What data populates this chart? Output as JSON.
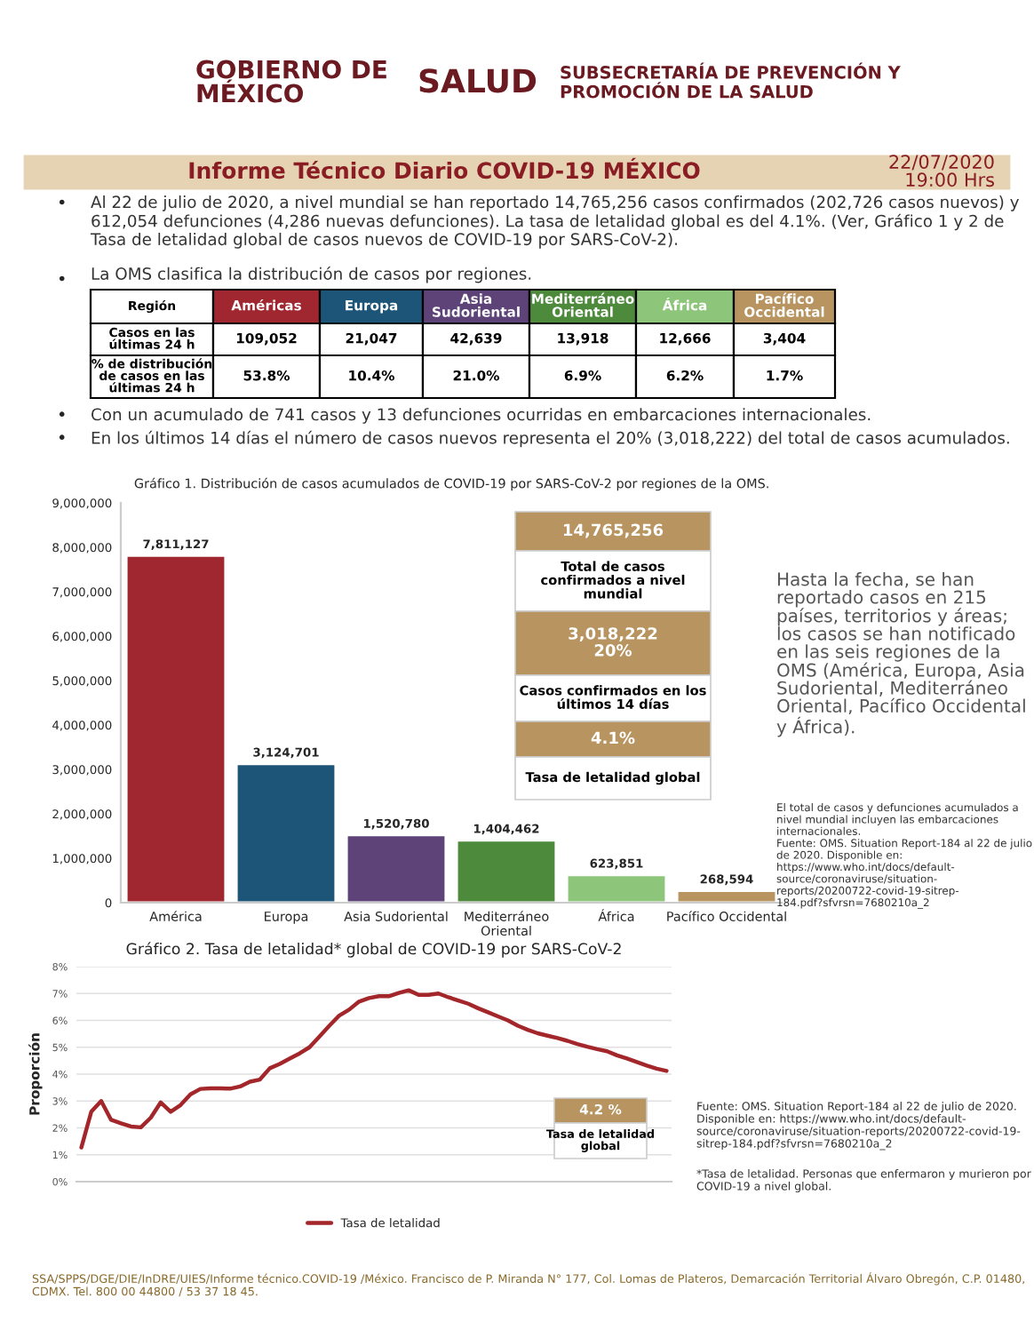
{
  "chart_data": [
    {
      "type": "other",
      "title": "Informe Técnico Diario COVID-19 MÉXICO",
      "subtitle": "22/07/2020\n19:00 Hrs",
      "annotations": [
        "GOBIERNO DE\nMÉXICO",
        "SALUD",
        "SUBSECRETARÍA DE PREVENCIÓN Y\nPROMOCIÓN DE LA SALUD",
        "Al 22 de julio de 2020, a nivel mundial se han reportado 14,765,256 casos confirmados (202,726 casos nuevos) y 612,054 defunciones (4,286 nuevas defunciones). La tasa de letalidad global es del 4.1%. (Ver, Gráfico 1 y 2 de Tasa de letalidad global de casos nuevos de COVID-19 por SARS-CoV-2).",
        "La OMS clasifica la distribución de casos por regiones.",
        "Región",
        "Américas",
        "Europa",
        "Asia\nSudoriental",
        "Mediterráneo\nOriental",
        "África",
        "Pacífico\nOccidental",
        "Casos en las\núltimas 24 h",
        "109,052",
        "21,047",
        "42,639",
        "13,918",
        "12,666",
        "3,404",
        "% de distribución\nde casos en las\núltimas 24 h",
        "53.8%",
        "10.4%",
        "21.0%",
        "6.9%",
        "6.2%",
        "1.7%",
        "Con un acumulado de 741 casos y 13 defunciones ocurridas en embarcaciones internacionales.",
        "En los últimos 14 días el número de casos nuevos representa el 20% (3,018,222) del total de casos acumulados.",
        "SSA/SPPS/DGE/DIE/InDRE/UIES/Informe técnico.COVID-19 /México. Francisco de P. Miranda N° 177, Col. Lomas de Plateros, Demarcación Territorial Álvaro Obregón, C.P. 01480, CDMX. Tel. 800 00 44800 / 53 37 18 45.",
        "•",
        "•",
        "•",
        "•"
      ]
    },
    {
      "type": "bar",
      "title": "Gráfico 1. Distribución de casos acumulados de COVID-19 por SARS-CoV-2 por regiones de la OMS.",
      "categories": [
        "América",
        "Europa",
        "Asia Sudoriental",
        "Mediterráneo\nOriental",
        "África",
        "Pacífico Occidental"
      ],
      "values": [
        7811127,
        3124701,
        1520780,
        1404462,
        623851,
        268594
      ],
      "colors": [
        "#a0272f",
        "#1d5579",
        "#5e4379",
        "#4d8a3c",
        "#8dc57a",
        "#b89460"
      ],
      "value_labels": [
        "7,811,127",
        "3,124,701",
        "1,520,780",
        "1,404,462",
        "623,851",
        "268,594"
      ],
      "ylim": [
        0,
        9000000
      ],
      "yticks": [
        {
          "value": 0,
          "label": "0"
        },
        {
          "value": 1000000,
          "label": "1,000,000"
        },
        {
          "value": 2000000,
          "label": "2,000,000"
        },
        {
          "value": 3000000,
          "label": "3,000,000"
        },
        {
          "value": 4000000,
          "label": "4,000,000"
        },
        {
          "value": 5000000,
          "label": "5,000,000"
        },
        {
          "value": 6000000,
          "label": "6,000,000"
        },
        {
          "value": 7000000,
          "label": "7,000,000"
        },
        {
          "value": 8000000,
          "label": "8,000,000"
        },
        {
          "value": 9000000,
          "label": "9,000,000"
        }
      ],
      "annotations": [
        "14,765,256",
        "Total de casos\nconfirmados a nivel\nmundial",
        "3,018,222\n20%",
        "Casos confirmados en los\núltimos 14 días",
        "4.1%",
        "Tasa de letalidad global",
        "Hasta la fecha, se han reportado casos en 215 países, territorios y áreas; los casos se han notificado en las seis regiones de la OMS (América, Europa, Asia Sudoriental, Mediterráneo Oriental, Pacífico Occidental y África).",
        "El total de casos y defunciones acumulados a nivel mundial incluyen las embarcaciones internacionales.\nFuente: OMS. Situation Report-184 al 22 de julio de 2020. Disponible en:\nhttps://www.who.int/docs/default-\nsource/coronaviruse/situation-\nreports/20200722-covid-19-sitrep-\n184.pdf?sfvrsn=7680210a_2"
      ]
    },
    {
      "type": "line",
      "title": "Gráfico 2. Tasa de letalidad* global de COVID-19 por SARS-CoV-2",
      "ylabel": "Proporción",
      "categories": [
        null,
        null,
        null,
        null,
        null,
        null,
        null,
        null,
        null,
        null,
        null,
        null,
        null,
        null,
        null,
        null,
        null,
        null,
        null,
        null,
        null,
        null,
        null,
        null,
        null,
        null,
        null,
        null,
        null,
        null,
        null,
        null,
        null,
        null,
        null,
        null,
        null,
        null,
        null,
        null,
        null,
        null,
        null,
        null,
        null,
        null,
        null,
        null,
        null,
        null,
        null,
        null,
        null,
        null,
        null,
        null,
        null,
        null,
        null,
        null
      ],
      "series": [
        {
          "name": "Tasa de letalidad",
          "color": "#a3262a",
          "values": [
            1.27,
            2.6,
            3.0,
            2.3,
            2.17,
            2.05,
            2.02,
            2.38,
            2.95,
            2.6,
            2.85,
            3.25,
            3.45,
            3.47,
            3.47,
            3.46,
            3.54,
            3.72,
            3.8,
            4.22,
            4.38,
            4.58,
            4.77,
            5.0,
            5.4,
            5.8,
            6.18,
            6.4,
            6.7,
            6.83,
            6.9,
            6.9,
            7.02,
            7.12,
            6.95,
            6.95,
            7.0,
            6.86,
            6.74,
            6.62,
            6.45,
            6.3,
            6.15,
            6.0,
            5.8,
            5.65,
            5.52,
            5.43,
            5.34,
            5.24,
            5.12,
            5.02,
            4.93,
            4.85,
            4.7,
            4.58,
            4.45,
            4.32,
            4.2,
            4.12
          ]
        }
      ],
      "ylim": [
        0,
        8
      ],
      "yticks": [
        {
          "value": 0,
          "label": "0%"
        },
        {
          "value": 1,
          "label": "1%"
        },
        {
          "value": 2,
          "label": "2%"
        },
        {
          "value": 3,
          "label": "3%"
        },
        {
          "value": 4,
          "label": "4%"
        },
        {
          "value": 5,
          "label": "5%"
        },
        {
          "value": 6,
          "label": "6%"
        },
        {
          "value": 7,
          "label": "7%"
        },
        {
          "value": 8,
          "label": "8%"
        }
      ],
      "grid": "y",
      "legend": "bottom",
      "annotations": [
        "4.2 %",
        "Tasa de letalidad\nglobal",
        "Fuente: OMS. Situation Report-184 al 22 de julio de 2020. Disponible en: https://www.who.int/docs/default-\nsource/coronaviruse/situation-reports/20200722-covid-19-\nsitrep-184.pdf?sfvrsn=7680210a_2",
        "*Tasa de letalidad. Personas que enfermaron y murieron por COVID-19 a nivel global."
      ]
    }
  ]
}
